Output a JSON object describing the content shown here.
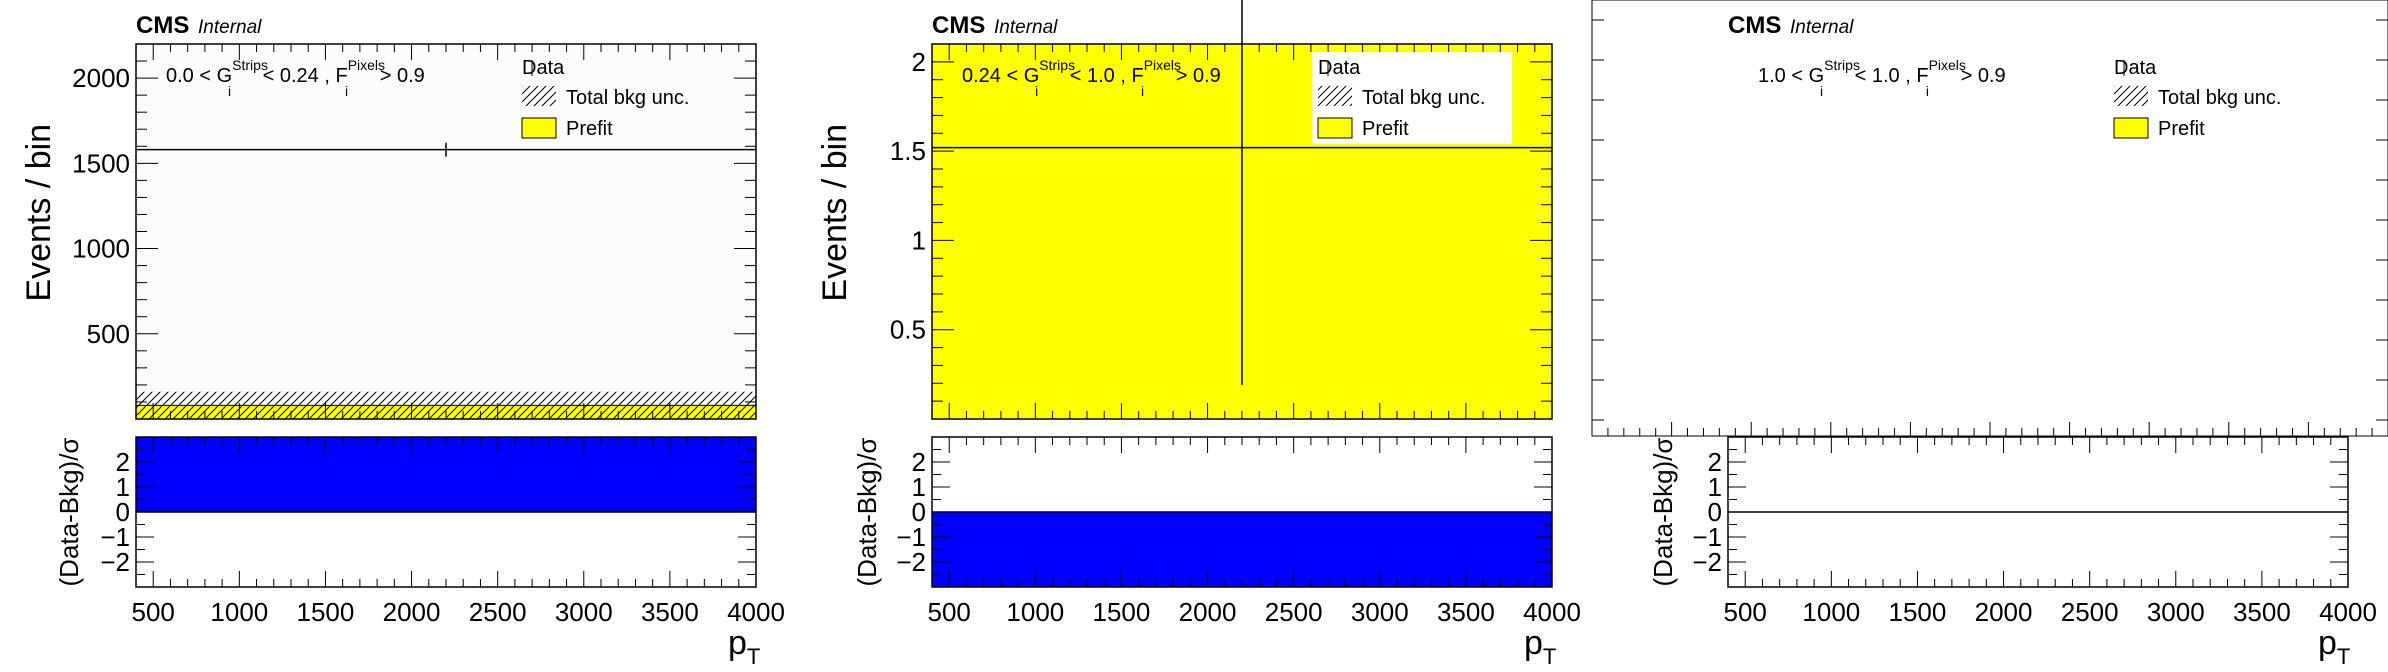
{
  "chart_data": [
    {
      "type": "bar",
      "cms_label": "CMS",
      "status_label": "Internal",
      "region": {
        "text1": "0.0 < G",
        "sub1": "i",
        "sup1": "Strips",
        "text2": " < 0.24 , F",
        "sub2": "i",
        "sup2": "Pixels",
        "text3": " > 0.9"
      },
      "ylabel": "Events / bin",
      "xlabel": "p",
      "xlabel_sub": "T",
      "xlim": [
        400,
        4000
      ],
      "ylim": [
        0,
        2200
      ],
      "y_log": false,
      "y_ticks": [
        500,
        1000,
        1500,
        2000
      ],
      "y_tick_labels": [
        "500",
        "1000",
        "1500",
        "2000"
      ],
      "x_ticks": [
        500,
        1000,
        1500,
        2000,
        2500,
        3000,
        3500,
        4000
      ],
      "x_tick_labels": [
        "500",
        "1000",
        "1500",
        "2000",
        "2500",
        "3000",
        "3500",
        "4000"
      ],
      "legend": [
        "Data",
        "Total bkg unc.",
        "Prefit"
      ],
      "data": {
        "x": 2200,
        "y": 1580
      },
      "prefit": {
        "xmin": 400,
        "xmax": 4000,
        "value": 80,
        "unc": 80
      },
      "ratio": {
        "ylabel": "(Data-Bkg)/σ",
        "ylim": [
          -3,
          3
        ],
        "ticks": [
          2,
          1,
          0,
          -1,
          -2
        ],
        "tick_labels": [
          "2",
          "1",
          "0",
          "−1",
          "−2"
        ],
        "value": 3
      }
    },
    {
      "type": "bar",
      "cms_label": "CMS",
      "status_label": "Internal",
      "region": {
        "text1": "0.24 < G",
        "sub1": "i",
        "sup1": "Strips",
        "text2": " < 1.0 , F",
        "sub2": "i",
        "sup2": "Pixels",
        "text3": " > 0.9"
      },
      "ylabel": "Events / bin",
      "xlabel": "p",
      "xlabel_sub": "T",
      "xlim": [
        400,
        4000
      ],
      "ylim": [
        0,
        2.1
      ],
      "y_log": false,
      "y_ticks": [
        0.5,
        1,
        1.5,
        2
      ],
      "y_tick_labels": [
        "0.5",
        "1",
        "1.5",
        "2"
      ],
      "x_ticks": [
        500,
        1000,
        1500,
        2000,
        2500,
        3000,
        3500,
        4000
      ],
      "x_tick_labels": [
        "500",
        "1000",
        "1500",
        "2000",
        "2500",
        "3000",
        "3500",
        "4000"
      ],
      "legend": [
        "Data",
        "Total bkg unc.",
        "Prefit"
      ],
      "data": {
        "x": 2200,
        "y": 1.52,
        "err_low": 1.33,
        "err_high": 1.0
      },
      "prefit": {
        "xmin": 400,
        "xmax": 4000,
        "value": 2.1,
        "unc": 0
      },
      "ratio": {
        "ylabel": "(Data-Bkg)/σ",
        "ylim": [
          -3,
          3
        ],
        "ticks": [
          2,
          1,
          0,
          -1,
          -2
        ],
        "tick_labels": [
          "2",
          "1",
          "0",
          "−1",
          "−2"
        ],
        "value": -3
      }
    },
    {
      "type": "bar",
      "cms_label": "CMS",
      "status_label": "Internal",
      "region": {
        "text1": "1.0 < G",
        "sub1": "i",
        "sup1": "Strips",
        "text2": " < 1.0 , F",
        "sub2": "i",
        "sup2": "Pixels",
        "text3": " > 0.9"
      },
      "ylabel": "",
      "xlabel": "p",
      "xlabel_sub": "T",
      "xlim": [
        400,
        4000
      ],
      "ylim": [
        0,
        1
      ],
      "y_log": false,
      "y_ticks": [],
      "y_tick_labels": [],
      "x_ticks": [
        500,
        1000,
        1500,
        2000,
        2500,
        3000,
        3500,
        4000
      ],
      "x_tick_labels": [
        "500",
        "1000",
        "1500",
        "2000",
        "2500",
        "3000",
        "3500",
        "4000"
      ],
      "legend": [
        "Data",
        "Total bkg unc.",
        "Prefit"
      ],
      "data": null,
      "prefit": null,
      "ratio": {
        "ylabel": "(Data-Bkg)/σ",
        "ylim": [
          -3,
          3
        ],
        "ticks": [
          2,
          1,
          0,
          -1,
          -2
        ],
        "tick_labels": [
          "2",
          "1",
          "0",
          "−1",
          "−2"
        ],
        "value": 0
      }
    }
  ],
  "colors": {
    "prefit_fill": "#ffff00",
    "ratio_fill": "#0000ff",
    "main_bg_panel1": "#fcfcfc",
    "axis": "#000000"
  }
}
